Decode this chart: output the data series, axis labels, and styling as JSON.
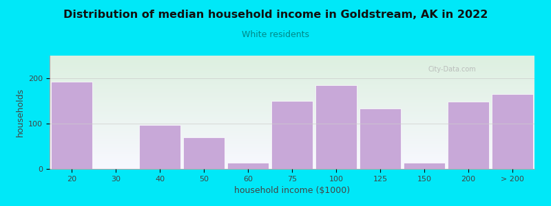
{
  "title": "Distribution of median household income in Goldstream, AK in 2022",
  "subtitle": "White residents",
  "xlabel": "household income ($1000)",
  "ylabel": "households",
  "bar_color": "#c8a8d8",
  "background_color": "#00e8f8",
  "plot_bg_top": "#ddf0e0",
  "plot_bg_bottom": "#f8f8ff",
  "categories": [
    "20",
    "30",
    "40",
    "50",
    "60",
    "75",
    "100",
    "125",
    "150",
    "200",
    "> 200"
  ],
  "bar_lefts": [
    0,
    1,
    2,
    3,
    4,
    5,
    6,
    7,
    8,
    9,
    10
  ],
  "bar_widths": [
    0.95,
    0.95,
    0.95,
    0.95,
    0.95,
    0.95,
    0.95,
    0.95,
    0.95,
    0.95,
    0.95
  ],
  "bar_heights": [
    193,
    0,
    97,
    70,
    13,
    150,
    185,
    133,
    13,
    148,
    165
  ],
  "ylim": [
    0,
    250
  ],
  "yticks": [
    0,
    100,
    200
  ],
  "watermark": "City-Data.com"
}
